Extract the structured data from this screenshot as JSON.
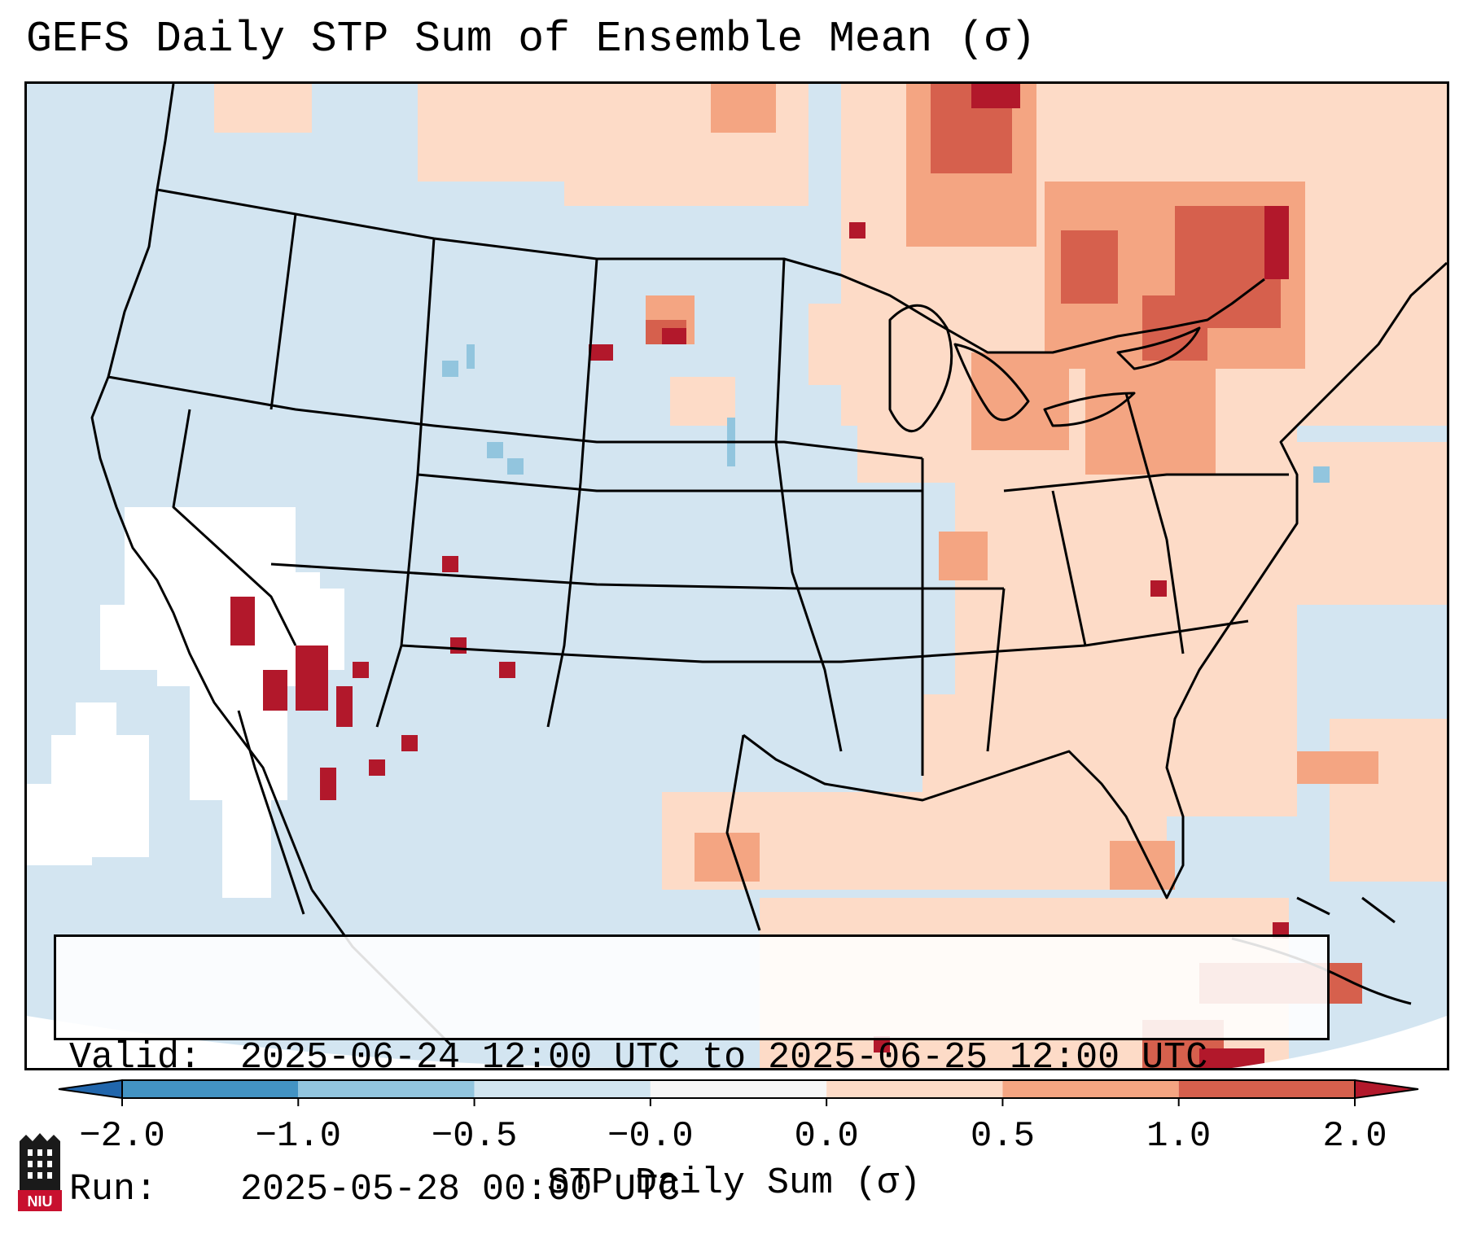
{
  "title": "GEFS Daily STP Sum of Ensemble Mean (σ)",
  "info": {
    "valid_label": "Valid:",
    "valid_value": "2025-06-24 12:00 UTC to 2025-06-25 12:00 UTC",
    "run_label": "Run:",
    "run_value": "2025-05-28 00:00 UTC"
  },
  "colorbar": {
    "label": "STP Daily Sum (σ)",
    "tick_labels": [
      "−2.0",
      "−1.0",
      "−0.5",
      "−0.0",
      "0.0",
      "0.5",
      "1.0",
      "2.0"
    ],
    "bins": [
      {
        "range": "below -2.0",
        "color": "#2166ac"
      },
      {
        "range": "-2.0 to -1.0",
        "color": "#4393c3"
      },
      {
        "range": "-1.0 to -0.5",
        "color": "#92c5de"
      },
      {
        "range": "-0.5 to -0.0",
        "color": "#d1e5f0"
      },
      {
        "range": "-0.0 to 0.0",
        "color": "#f7f7f7"
      },
      {
        "range": "0.0 to 0.5",
        "color": "#fddbc7"
      },
      {
        "range": "0.5 to 1.0",
        "color": "#f4a582"
      },
      {
        "range": "1.0 to 2.0",
        "color": "#d6604d"
      },
      {
        "range": "above 2.0",
        "color": "#b2182b"
      }
    ]
  },
  "map": {
    "background_color": "#d3e5f1",
    "outline_color": "#000000"
  },
  "logo": {
    "text": "NIU"
  }
}
